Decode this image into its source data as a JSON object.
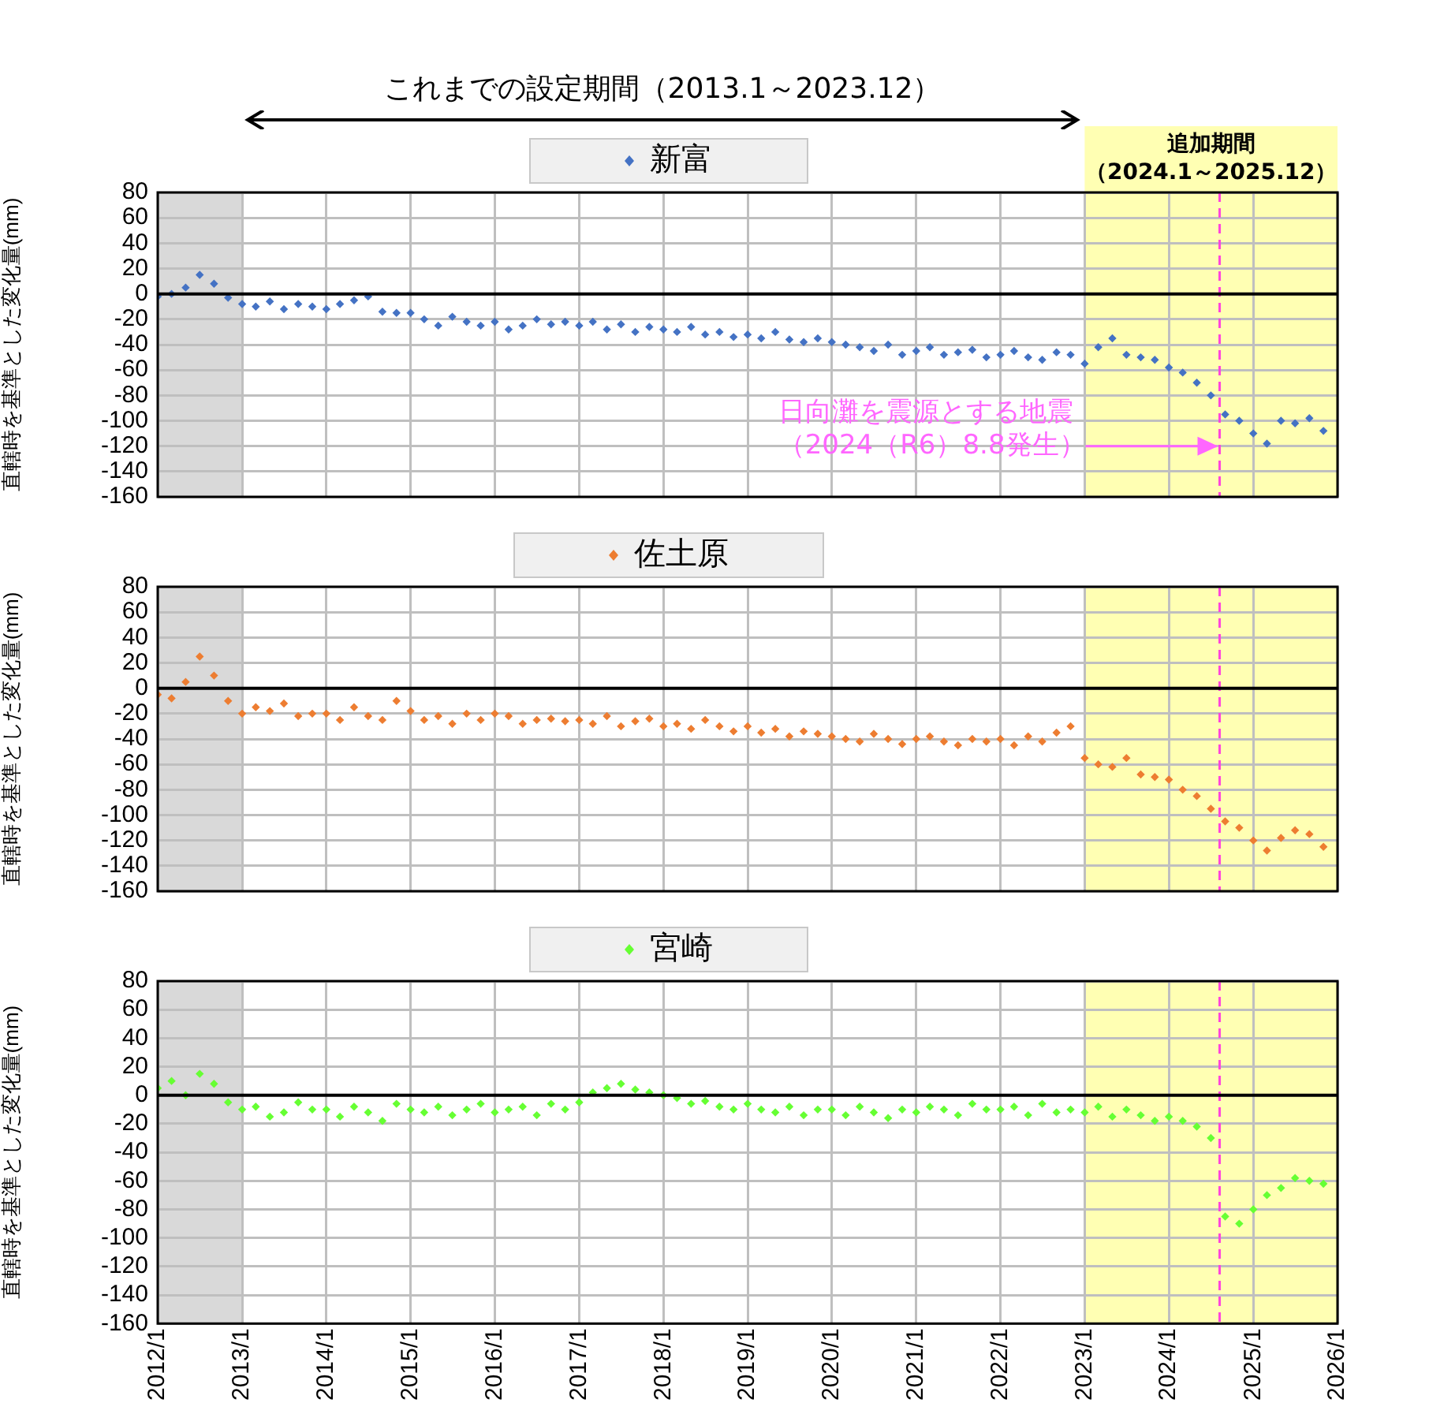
{
  "chart_data": [
    {
      "type": "scatter",
      "ylabel": "直轄時を基準とした変化量(mm)",
      "annotations": [
        "これまでの設定期間（2013.1～2023.12）",
        {
          "text": "日向灘を震源とする地震（2024（R6）8.8発生）",
          "x": "2024-08-08",
          "y": -120
        }
      ],
      "x": [
        "2012-01",
        "2012-03",
        "2012-05",
        "2012-07",
        "2012-09",
        "2012-11",
        "2013-01",
        "2013-03",
        "2013-05",
        "2013-07",
        "2013-09",
        "2013-11",
        "2014-01",
        "2014-03",
        "2014-05",
        "2014-07",
        "2014-09",
        "2014-11",
        "2015-01",
        "2015-03",
        "2015-05",
        "2015-07",
        "2015-09",
        "2015-11",
        "2016-01",
        "2016-03",
        "2016-05",
        "2016-07",
        "2016-09",
        "2016-11",
        "2017-01",
        "2017-03",
        "2017-05",
        "2017-07",
        "2017-09",
        "2017-11",
        "2018-01",
        "2018-03",
        "2018-05",
        "2018-07",
        "2018-09",
        "2018-11",
        "2019-01",
        "2019-03",
        "2019-05",
        "2019-07",
        "2019-09",
        "2019-11",
        "2020-01",
        "2020-03",
        "2020-05",
        "2020-07",
        "2020-09",
        "2020-11",
        "2021-01",
        "2021-03",
        "2021-05",
        "2021-07",
        "2021-09",
        "2021-11",
        "2022-01",
        "2022-03",
        "2022-05",
        "2022-07",
        "2022-09",
        "2022-11",
        "2023-01",
        "2023-03",
        "2023-05",
        "2023-07",
        "2023-09",
        "2023-11",
        "2024-01",
        "2024-03",
        "2024-05",
        "2024-07",
        "2024-09",
        "2024-11",
        "2025-01",
        "2025-03",
        "2025-05",
        "2025-07",
        "2025-09",
        "2025-11"
      ],
      "series": [
        {
          "name": "新富",
          "color": "#4472c4",
          "values": [
            -2,
            0,
            5,
            15,
            8,
            -3,
            -8,
            -10,
            -6,
            -12,
            -8,
            -10,
            -12,
            -8,
            -5,
            -2,
            -14,
            -15,
            -15,
            -20,
            -25,
            -18,
            -22,
            -25,
            -22,
            -28,
            -25,
            -20,
            -24,
            -22,
            -25,
            -22,
            -28,
            -24,
            -30,
            -26,
            -28,
            -30,
            -26,
            -32,
            -30,
            -34,
            -32,
            -35,
            -30,
            -36,
            -38,
            -35,
            -38,
            -40,
            -42,
            -45,
            -40,
            -48,
            -45,
            -42,
            -48,
            -46,
            -44,
            -50,
            -48,
            -45,
            -50,
            -52,
            -46,
            -48,
            -55,
            -42,
            -35,
            -48,
            -50,
            -52,
            -58,
            -62,
            -70,
            -80,
            -95,
            -100,
            -110,
            -118,
            -100,
            -102,
            -98,
            -108
          ]
        }
      ],
      "xlim": [
        "2012-01",
        "2026-01"
      ],
      "xticks": [
        {
          "value": "2012-01",
          "label": null
        },
        {
          "value": "2013-01",
          "label": null
        },
        {
          "value": "2014-01",
          "label": null
        },
        {
          "value": "2015-01",
          "label": null
        },
        {
          "value": "2016-01",
          "label": null
        },
        {
          "value": "2017-01",
          "label": null
        },
        {
          "value": "2018-01",
          "label": null
        },
        {
          "value": "2019-01",
          "label": null
        },
        {
          "value": "2020-01",
          "label": null
        },
        {
          "value": "2021-01",
          "label": null
        },
        {
          "value": "2022-01",
          "label": null
        },
        {
          "value": "2023-01",
          "label": null
        },
        {
          "value": "2024-01",
          "label": null
        },
        {
          "value": "2025-01",
          "label": null
        },
        {
          "value": "2026-01",
          "label": null
        }
      ],
      "ylim": [
        -160,
        80
      ],
      "yticks": [
        -160,
        -140,
        -120,
        -100,
        -80,
        -60,
        -40,
        -20,
        0,
        20,
        40,
        60,
        80
      ],
      "bands": [
        {
          "axis": "x",
          "from": "2012-01",
          "to": "2013-01",
          "color": "#d9d9d9"
        },
        {
          "axis": "x",
          "from": "2023-01",
          "to": "2026-01",
          "color": "#ffffb3",
          "label": "追加期間（2024.1～2025.12）"
        }
      ],
      "ref_lines": [
        {
          "axis": "x",
          "value": "2024-08-08",
          "color": "#ff44dd",
          "line_style": "dashed"
        },
        {
          "axis": "y",
          "value": 0,
          "color": "#000000"
        }
      ],
      "grid": true,
      "legend": "top",
      "marker": "diamond",
      "tick_labels": "y"
    },
    {
      "type": "scatter",
      "ylabel": "直轄時を基準とした変化量(mm)",
      "x": [
        "2012-01",
        "2012-03",
        "2012-05",
        "2012-07",
        "2012-09",
        "2012-11",
        "2013-01",
        "2013-03",
        "2013-05",
        "2013-07",
        "2013-09",
        "2013-11",
        "2014-01",
        "2014-03",
        "2014-05",
        "2014-07",
        "2014-09",
        "2014-11",
        "2015-01",
        "2015-03",
        "2015-05",
        "2015-07",
        "2015-09",
        "2015-11",
        "2016-01",
        "2016-03",
        "2016-05",
        "2016-07",
        "2016-09",
        "2016-11",
        "2017-01",
        "2017-03",
        "2017-05",
        "2017-07",
        "2017-09",
        "2017-11",
        "2018-01",
        "2018-03",
        "2018-05",
        "2018-07",
        "2018-09",
        "2018-11",
        "2019-01",
        "2019-03",
        "2019-05",
        "2019-07",
        "2019-09",
        "2019-11",
        "2020-01",
        "2020-03",
        "2020-05",
        "2020-07",
        "2020-09",
        "2020-11",
        "2021-01",
        "2021-03",
        "2021-05",
        "2021-07",
        "2021-09",
        "2021-11",
        "2022-01",
        "2022-03",
        "2022-05",
        "2022-07",
        "2022-09",
        "2022-11",
        "2023-01",
        "2023-03",
        "2023-05",
        "2023-07",
        "2023-09",
        "2023-11",
        "2024-01",
        "2024-03",
        "2024-05",
        "2024-07",
        "2024-09",
        "2024-11",
        "2025-01",
        "2025-03",
        "2025-05",
        "2025-07",
        "2025-09",
        "2025-11"
      ],
      "series": [
        {
          "name": "佐土原",
          "color": "#ed7d31",
          "values": [
            -5,
            -8,
            5,
            25,
            10,
            -10,
            -20,
            -15,
            -18,
            -12,
            -22,
            -20,
            -20,
            -25,
            -15,
            -22,
            -25,
            -10,
            -18,
            -25,
            -22,
            -28,
            -20,
            -25,
            -20,
            -22,
            -28,
            -25,
            -24,
            -26,
            -25,
            -28,
            -22,
            -30,
            -26,
            -24,
            -30,
            -28,
            -32,
            -25,
            -30,
            -34,
            -30,
            -35,
            -32,
            -38,
            -34,
            -36,
            -38,
            -40,
            -42,
            -36,
            -40,
            -44,
            -40,
            -38,
            -42,
            -45,
            -40,
            -42,
            -40,
            -45,
            -38,
            -42,
            -35,
            -30,
            -55,
            -60,
            -62,
            -55,
            -68,
            -70,
            -72,
            -80,
            -85,
            -95,
            -105,
            -110,
            -120,
            -128,
            -118,
            -112,
            -115,
            -125
          ]
        }
      ],
      "xlim": [
        "2012-01",
        "2026-01"
      ],
      "xticks": [
        {
          "value": "2012-01",
          "label": null
        },
        {
          "value": "2013-01",
          "label": null
        },
        {
          "value": "2014-01",
          "label": null
        },
        {
          "value": "2015-01",
          "label": null
        },
        {
          "value": "2016-01",
          "label": null
        },
        {
          "value": "2017-01",
          "label": null
        },
        {
          "value": "2018-01",
          "label": null
        },
        {
          "value": "2019-01",
          "label": null
        },
        {
          "value": "2020-01",
          "label": null
        },
        {
          "value": "2021-01",
          "label": null
        },
        {
          "value": "2022-01",
          "label": null
        },
        {
          "value": "2023-01",
          "label": null
        },
        {
          "value": "2024-01",
          "label": null
        },
        {
          "value": "2025-01",
          "label": null
        },
        {
          "value": "2026-01",
          "label": null
        }
      ],
      "ylim": [
        -160,
        80
      ],
      "yticks": [
        -160,
        -140,
        -120,
        -100,
        -80,
        -60,
        -40,
        -20,
        0,
        20,
        40,
        60,
        80
      ],
      "bands": [
        {
          "axis": "x",
          "from": "2012-01",
          "to": "2013-01",
          "color": "#d9d9d9"
        },
        {
          "axis": "x",
          "from": "2023-01",
          "to": "2026-01",
          "color": "#ffffb3"
        }
      ],
      "ref_lines": [
        {
          "axis": "x",
          "value": "2024-08-08",
          "color": "#ff44dd",
          "line_style": "dashed"
        },
        {
          "axis": "y",
          "value": 0,
          "color": "#000000"
        }
      ],
      "grid": true,
      "legend": "top",
      "marker": "diamond",
      "tick_labels": "y"
    },
    {
      "type": "scatter",
      "ylabel": "直轄時を基準とした変化量(mm)",
      "x": [
        "2012-01",
        "2012-03",
        "2012-05",
        "2012-07",
        "2012-09",
        "2012-11",
        "2013-01",
        "2013-03",
        "2013-05",
        "2013-07",
        "2013-09",
        "2013-11",
        "2014-01",
        "2014-03",
        "2014-05",
        "2014-07",
        "2014-09",
        "2014-11",
        "2015-01",
        "2015-03",
        "2015-05",
        "2015-07",
        "2015-09",
        "2015-11",
        "2016-01",
        "2016-03",
        "2016-05",
        "2016-07",
        "2016-09",
        "2016-11",
        "2017-01",
        "2017-03",
        "2017-05",
        "2017-07",
        "2017-09",
        "2017-11",
        "2018-01",
        "2018-03",
        "2018-05",
        "2018-07",
        "2018-09",
        "2018-11",
        "2019-01",
        "2019-03",
        "2019-05",
        "2019-07",
        "2019-09",
        "2019-11",
        "2020-01",
        "2020-03",
        "2020-05",
        "2020-07",
        "2020-09",
        "2020-11",
        "2021-01",
        "2021-03",
        "2021-05",
        "2021-07",
        "2021-09",
        "2021-11",
        "2022-01",
        "2022-03",
        "2022-05",
        "2022-07",
        "2022-09",
        "2022-11",
        "2023-01",
        "2023-03",
        "2023-05",
        "2023-07",
        "2023-09",
        "2023-11",
        "2024-01",
        "2024-03",
        "2024-05",
        "2024-07",
        "2024-09",
        "2024-11",
        "2025-01",
        "2025-03",
        "2025-05",
        "2025-07",
        "2025-09",
        "2025-11"
      ],
      "series": [
        {
          "name": "宮崎",
          "color": "#66ff33",
          "values": [
            5,
            10,
            0,
            15,
            8,
            -5,
            -10,
            -8,
            -15,
            -12,
            -5,
            -10,
            -10,
            -15,
            -8,
            -12,
            -18,
            -6,
            -10,
            -12,
            -8,
            -14,
            -10,
            -6,
            -12,
            -10,
            -8,
            -14,
            -6,
            -10,
            -5,
            2,
            5,
            8,
            4,
            2,
            0,
            -2,
            -6,
            -4,
            -8,
            -10,
            -6,
            -10,
            -12,
            -8,
            -14,
            -10,
            -10,
            -14,
            -8,
            -12,
            -16,
            -10,
            -12,
            -8,
            -10,
            -14,
            -6,
            -10,
            -10,
            -8,
            -14,
            -6,
            -12,
            -10,
            -12,
            -8,
            -15,
            -10,
            -14,
            -18,
            -15,
            -18,
            -22,
            -30,
            -85,
            -90,
            -80,
            -70,
            -65,
            -58,
            -60,
            -62
          ]
        }
      ],
      "xlim": [
        "2012-01",
        "2026-01"
      ],
      "xticks": [
        {
          "value": "2012-01",
          "label": "2012/1"
        },
        {
          "value": "2013-01",
          "label": "2013/1"
        },
        {
          "value": "2014-01",
          "label": "2014/1"
        },
        {
          "value": "2015-01",
          "label": "2015/1"
        },
        {
          "value": "2016-01",
          "label": "2016/1"
        },
        {
          "value": "2017-01",
          "label": "2017/1"
        },
        {
          "value": "2018-01",
          "label": "2018/1"
        },
        {
          "value": "2019-01",
          "label": "2019/1"
        },
        {
          "value": "2020-01",
          "label": "2020/1"
        },
        {
          "value": "2021-01",
          "label": "2021/1"
        },
        {
          "value": "2022-01",
          "label": "2022/1"
        },
        {
          "value": "2023-01",
          "label": "2023/1"
        },
        {
          "value": "2024-01",
          "label": "2024/1"
        },
        {
          "value": "2025-01",
          "label": "2025/1"
        },
        {
          "value": "2026-01",
          "label": "2026/1"
        }
      ],
      "ylim": [
        -160,
        80
      ],
      "yticks": [
        -160,
        -140,
        -120,
        -100,
        -80,
        -60,
        -40,
        -20,
        0,
        20,
        40,
        60,
        80
      ],
      "bands": [
        {
          "axis": "x",
          "from": "2012-01",
          "to": "2013-01",
          "color": "#d9d9d9"
        },
        {
          "axis": "x",
          "from": "2023-01",
          "to": "2026-01",
          "color": "#ffffb3"
        }
      ],
      "ref_lines": [
        {
          "axis": "x",
          "value": "2024-08-08",
          "color": "#ff44dd",
          "line_style": "dashed"
        },
        {
          "axis": "y",
          "value": 0,
          "color": "#000000"
        }
      ],
      "grid": true,
      "legend": "top",
      "marker": "diamond"
    }
  ]
}
